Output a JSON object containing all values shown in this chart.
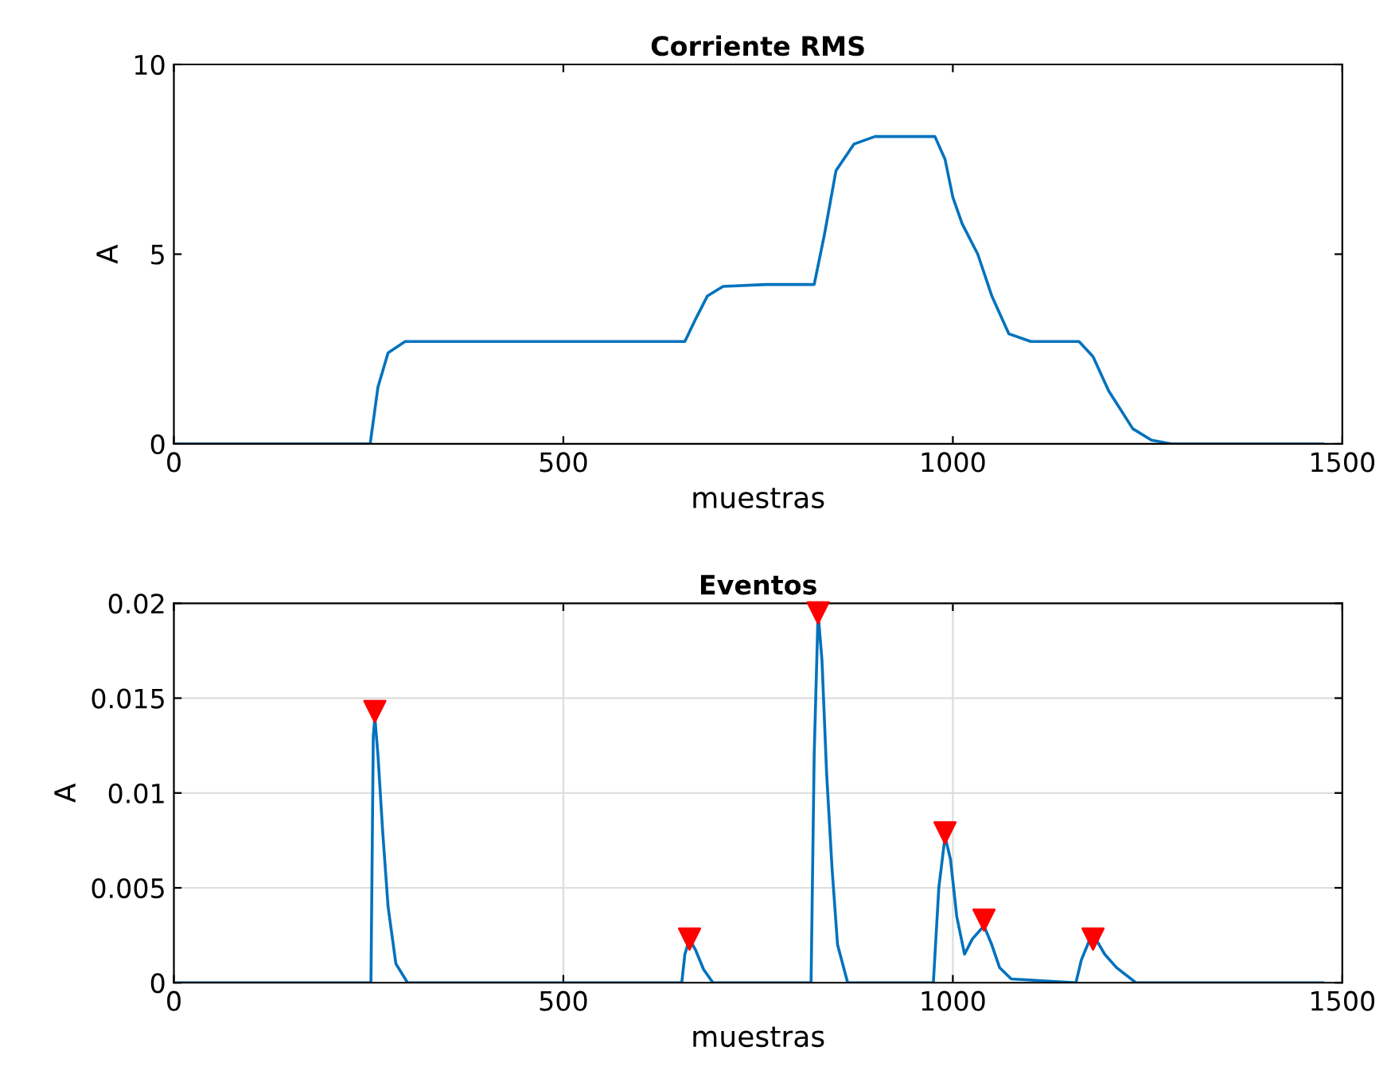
{
  "chart_data": [
    {
      "type": "line",
      "title": "Corriente RMS",
      "xlabel": "muestras",
      "ylabel": "A",
      "xlim": [
        0,
        1500
      ],
      "ylim": [
        0,
        10
      ],
      "xticks": [
        0,
        500,
        1000,
        1500
      ],
      "yticks": [
        0,
        5,
        10
      ],
      "grid": false,
      "series": [
        {
          "color": "#0072bd",
          "x": [
            0,
            252,
            262,
            275,
            297,
            400,
            656,
            670,
            685,
            705,
            760,
            822,
            835,
            850,
            873,
            900,
            977,
            990,
            1000,
            1012,
            1032,
            1050,
            1072,
            1100,
            1162,
            1180,
            1200,
            1231,
            1255,
            1281,
            1350,
            1475
          ],
          "values": [
            0,
            0,
            1.5,
            2.4,
            2.7,
            2.7,
            2.7,
            3.3,
            3.9,
            4.15,
            4.2,
            4.2,
            5.5,
            7.2,
            7.9,
            8.1,
            8.1,
            7.5,
            6.5,
            5.8,
            5.0,
            3.9,
            2.9,
            2.7,
            2.7,
            2.3,
            1.4,
            0.4,
            0.1,
            0,
            0,
            0
          ]
        }
      ]
    },
    {
      "type": "line",
      "title": "Eventos",
      "xlabel": "muestras",
      "ylabel": "A",
      "xlim": [
        0,
        1500
      ],
      "ylim": [
        0,
        0.02
      ],
      "xticks": [
        0,
        500,
        1000,
        1500
      ],
      "yticks": [
        0,
        0.005,
        0.01,
        0.015,
        0.02
      ],
      "grid": true,
      "series": [
        {
          "color": "#0072bd",
          "x": [
            0,
            253,
            256,
            258,
            262,
            268,
            275,
            285,
            300,
            652,
            656,
            662,
            670,
            680,
            692,
            818,
            822,
            827,
            832,
            838,
            845,
            852,
            865,
            975,
            982,
            990,
            997,
            1005,
            1015,
            1025,
            1040,
            1050,
            1060,
            1075,
            1158,
            1165,
            1175,
            1185,
            1195,
            1210,
            1235,
            1475
          ],
          "values": [
            0,
            0,
            0.013,
            0.014,
            0.012,
            0.008,
            0.004,
            0.001,
            0,
            0,
            0.0015,
            0.0023,
            0.0017,
            0.0007,
            0,
            0,
            0.012,
            0.0195,
            0.017,
            0.011,
            0.006,
            0.002,
            0,
            0,
            0.005,
            0.0077,
            0.0065,
            0.0035,
            0.0015,
            0.0023,
            0.003,
            0.002,
            0.0008,
            0.0002,
            0,
            0.0012,
            0.0022,
            0.0022,
            0.0015,
            0.0008,
            0,
            0
          ]
        },
        {
          "type": "scatter",
          "color": "#ff0000",
          "marker": "triangle",
          "x": [
            258,
            662,
            827,
            990,
            1040,
            1180
          ],
          "values": [
            0.0143,
            0.0023,
            0.0195,
            0.0079,
            0.0033,
            0.0023
          ]
        }
      ]
    }
  ]
}
